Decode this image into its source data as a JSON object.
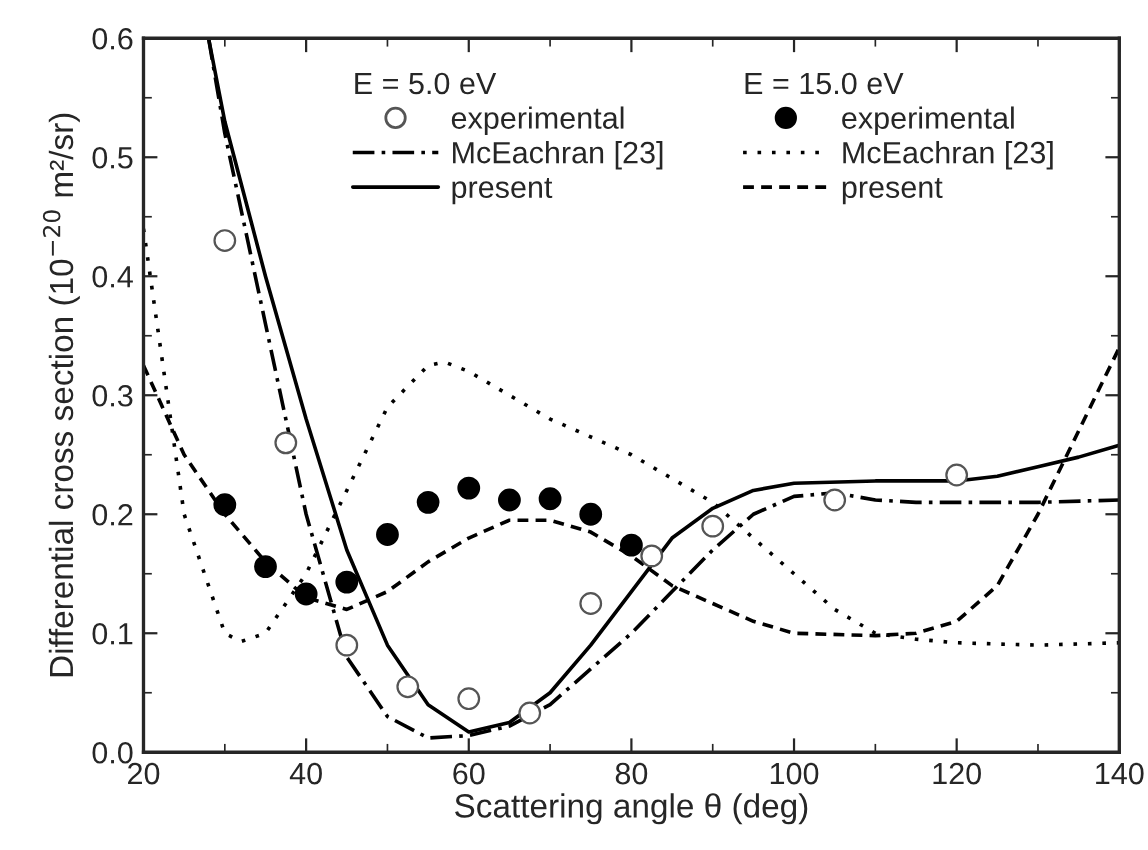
{
  "chart_data": {
    "type": "line",
    "xlabel": "Scattering angle θ (deg)",
    "ylabel": "Differential cross section (10$^{−20}$ m²/sr)",
    "annotations": [
      "E = 5.0 eV",
      "E = 15.0 eV"
    ],
    "xlim": [
      20,
      140
    ],
    "xticks": [
      20,
      40,
      60,
      80,
      100,
      120,
      140
    ],
    "ylim": [
      0,
      0.6
    ],
    "yticks": [
      {
        "value": 0,
        "label": "0.0"
      },
      0.1,
      0.2,
      0.3,
      0.4,
      0.5,
      0.6
    ],
    "legend": "top",
    "grid": false,
    "series": [
      {
        "name": "experimental",
        "type": "scatter",
        "marker": "circle",
        "color": "#ffffff",
        "x": [
          30,
          37.5,
          45,
          52.5,
          60,
          67.5,
          75,
          82.5,
          90,
          105,
          120
        ],
        "values": [
          0.43,
          0.26,
          0.09,
          0.055,
          0.045,
          0.033,
          0.125,
          0.165,
          0.19,
          0.212,
          0.233
        ]
      },
      {
        "name": "McEachran [23]",
        "line_style": "dashdot",
        "color": "#000000",
        "x": [
          28,
          30,
          35,
          40,
          45,
          50,
          55,
          60,
          65,
          70,
          75,
          80,
          85,
          90,
          95,
          100,
          105,
          110,
          115,
          120,
          130,
          140
        ],
        "values": [
          0.6,
          0.52,
          0.36,
          0.2,
          0.08,
          0.03,
          0.012,
          0.014,
          0.022,
          0.04,
          0.07,
          0.1,
          0.135,
          0.17,
          0.2,
          0.215,
          0.218,
          0.212,
          0.21,
          0.21,
          0.21,
          0.212
        ]
      },
      {
        "name": "present",
        "line_style": "solid",
        "color": "#000000",
        "x": [
          28,
          30,
          35,
          40,
          45,
          50,
          55,
          60,
          65,
          70,
          75,
          80,
          85,
          90,
          95,
          100,
          110,
          120,
          125,
          130,
          135,
          140
        ],
        "values": [
          0.6,
          0.53,
          0.4,
          0.28,
          0.17,
          0.09,
          0.04,
          0.017,
          0.025,
          0.05,
          0.09,
          0.135,
          0.18,
          0.205,
          0.22,
          0.226,
          0.228,
          0.228,
          0.232,
          0.24,
          0.248,
          0.258
        ]
      },
      {
        "name": "experimental",
        "type": "scatter",
        "marker": "circle",
        "color": "#000000",
        "x": [
          30,
          35,
          40,
          45,
          50,
          55,
          60,
          65,
          70,
          75,
          80
        ],
        "values": [
          0.208,
          0.156,
          0.133,
          0.143,
          0.183,
          0.21,
          0.222,
          0.212,
          0.213,
          0.2,
          0.174
        ]
      },
      {
        "name": "McEachran [23]",
        "line_style": "dotted",
        "color": "#000000",
        "x": [
          20,
          25,
          30,
          32,
          35,
          40,
          45,
          50,
          55,
          57,
          60,
          65,
          70,
          80,
          90,
          95,
          100,
          105,
          110,
          115,
          120,
          130,
          140
        ],
        "values": [
          0.44,
          0.2,
          0.1,
          0.093,
          0.1,
          0.15,
          0.22,
          0.29,
          0.325,
          0.328,
          0.32,
          0.3,
          0.28,
          0.25,
          0.21,
          0.18,
          0.15,
          0.12,
          0.1,
          0.095,
          0.092,
          0.09,
          0.092
        ]
      },
      {
        "name": "present",
        "line_style": "dashed",
        "color": "#000000",
        "x": [
          20,
          25,
          30,
          35,
          40,
          45,
          50,
          55,
          60,
          65,
          70,
          75,
          80,
          85,
          90,
          95,
          100,
          110,
          115,
          120,
          125,
          130,
          135,
          140
        ],
        "values": [
          0.325,
          0.25,
          0.2,
          0.16,
          0.13,
          0.12,
          0.135,
          0.16,
          0.18,
          0.195,
          0.195,
          0.185,
          0.165,
          0.14,
          0.125,
          0.11,
          0.1,
          0.098,
          0.1,
          0.11,
          0.14,
          0.2,
          0.27,
          0.34
        ]
      }
    ]
  }
}
